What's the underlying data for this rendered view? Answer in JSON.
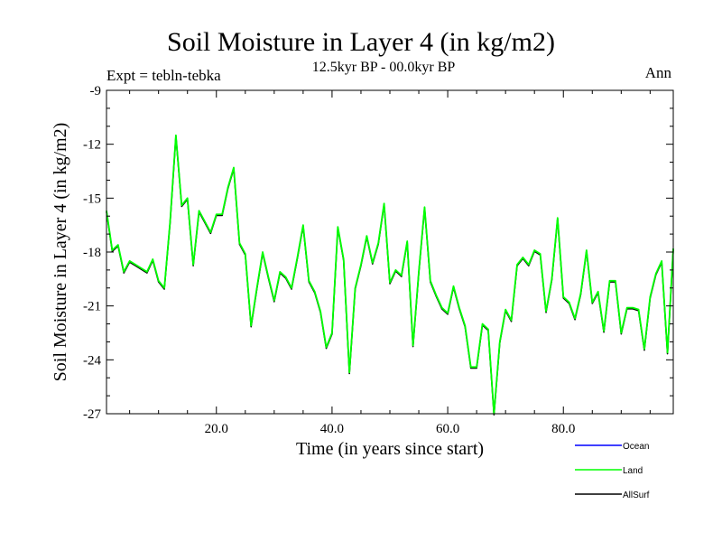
{
  "header": {
    "title": "Soil Moisture in Layer 4 (in kg/m2)",
    "subtitle": "12.5kyr BP - 00.0kyr BP",
    "experiment": "Expt = tebln-tebka",
    "period": "Ann"
  },
  "chart_data": {
    "type": "line",
    "title": "Soil Moisture in Layer 4 (in kg/m2)",
    "xlabel": "Time (in years since start)",
    "ylabel": "Soil Moisture in Layer 4 (in kg/m2)",
    "xlim": [
      1,
      99
    ],
    "ylim": [
      -27,
      -9
    ],
    "x_ticks": [
      20,
      40,
      60,
      80
    ],
    "x_tick_labels": [
      "20.0",
      "40.0",
      "60.0",
      "80.0"
    ],
    "y_ticks": [
      -9,
      -12,
      -15,
      -18,
      -21,
      -24,
      -27
    ],
    "y_tick_labels": [
      "-9",
      "-12",
      "-15",
      "-18",
      "-21",
      "-24",
      "-27"
    ],
    "x": [
      1,
      2,
      3,
      4,
      5,
      6,
      7,
      8,
      9,
      10,
      11,
      12,
      13,
      14,
      15,
      16,
      17,
      18,
      19,
      20,
      21,
      22,
      23,
      24,
      25,
      26,
      27,
      28,
      29,
      30,
      31,
      32,
      33,
      34,
      35,
      36,
      37,
      38,
      39,
      40,
      41,
      42,
      43,
      44,
      45,
      46,
      47,
      48,
      49,
      50,
      51,
      52,
      53,
      54,
      55,
      56,
      57,
      58,
      59,
      60,
      61,
      62,
      63,
      64,
      65,
      66,
      67,
      68,
      69,
      70,
      71,
      72,
      73,
      74,
      75,
      76,
      77,
      78,
      79,
      80,
      81,
      82,
      83,
      84,
      85,
      86,
      87,
      88,
      89,
      90,
      91,
      92,
      93,
      94,
      95,
      96,
      97,
      98,
      99
    ],
    "series": [
      {
        "name": "Ocean",
        "color": "#0000ff",
        "values": [
          -15.7,
          -17.9,
          -17.6,
          -19.1,
          -18.5,
          -18.7,
          -18.9,
          -19.1,
          -18.4,
          -19.6,
          -20.0,
          -16.3,
          -11.5,
          -15.4,
          -15.0,
          -18.7,
          -15.7,
          -16.3,
          -16.9,
          -15.9,
          -15.9,
          -14.4,
          -13.3,
          -17.5,
          -18.1,
          -22.1,
          -20.0,
          -18.0,
          -19.4,
          -20.7,
          -19.1,
          -19.4,
          -20.0,
          -18.3,
          -16.5,
          -19.6,
          -20.2,
          -21.3,
          -23.3,
          -22.5,
          -16.6,
          -18.4,
          -24.7,
          -20.0,
          -18.7,
          -17.1,
          -18.6,
          -17.5,
          -15.3,
          -19.7,
          -19.0,
          -19.3,
          -17.4,
          -23.2,
          -19.1,
          -15.5,
          -19.6,
          -20.4,
          -21.1,
          -21.4,
          -19.9,
          -21.1,
          -22.1,
          -24.4,
          -24.4,
          -22.0,
          -22.3,
          -27.0,
          -23.0,
          -21.2,
          -21.8,
          -18.7,
          -18.3,
          -18.7,
          -17.9,
          -18.1,
          -21.3,
          -19.5,
          -16.1,
          -20.5,
          -20.8,
          -21.7,
          -20.3,
          -17.9,
          -20.8,
          -20.2,
          -22.4,
          -19.6,
          -19.6,
          -22.5,
          -21.1,
          -21.1,
          -21.2,
          -23.4,
          -20.5,
          -19.2,
          -18.5,
          -23.6,
          -17.8
        ]
      },
      {
        "name": "Land",
        "color": "#00ff00",
        "values": [
          -15.7,
          -17.9,
          -17.6,
          -19.1,
          -18.5,
          -18.7,
          -18.9,
          -19.1,
          -18.4,
          -19.6,
          -20.0,
          -16.3,
          -11.5,
          -15.4,
          -15.0,
          -18.7,
          -15.7,
          -16.3,
          -16.9,
          -15.9,
          -15.9,
          -14.4,
          -13.3,
          -17.5,
          -18.1,
          -22.1,
          -20.0,
          -18.0,
          -19.4,
          -20.7,
          -19.1,
          -19.4,
          -20.0,
          -18.3,
          -16.5,
          -19.6,
          -20.2,
          -21.3,
          -23.3,
          -22.5,
          -16.6,
          -18.4,
          -24.7,
          -20.0,
          -18.7,
          -17.1,
          -18.6,
          -17.5,
          -15.3,
          -19.7,
          -19.0,
          -19.3,
          -17.4,
          -23.2,
          -19.1,
          -15.5,
          -19.6,
          -20.4,
          -21.1,
          -21.4,
          -19.9,
          -21.1,
          -22.1,
          -24.4,
          -24.4,
          -22.0,
          -22.3,
          -27.0,
          -23.0,
          -21.2,
          -21.8,
          -18.7,
          -18.3,
          -18.7,
          -17.9,
          -18.1,
          -21.3,
          -19.5,
          -16.1,
          -20.5,
          -20.8,
          -21.7,
          -20.3,
          -17.9,
          -20.8,
          -20.2,
          -22.4,
          -19.6,
          -19.6,
          -22.5,
          -21.1,
          -21.1,
          -21.2,
          -23.4,
          -20.5,
          -19.2,
          -18.5,
          -23.6,
          -17.8
        ]
      },
      {
        "name": "AllSurf",
        "color": "#000000",
        "values": [
          -15.7,
          -17.9,
          -17.6,
          -19.1,
          -18.5,
          -18.7,
          -18.9,
          -19.1,
          -18.4,
          -19.6,
          -20.0,
          -16.3,
          -11.5,
          -15.4,
          -15.0,
          -18.7,
          -15.7,
          -16.3,
          -16.9,
          -15.9,
          -15.9,
          -14.4,
          -13.3,
          -17.5,
          -18.1,
          -22.1,
          -20.0,
          -18.0,
          -19.4,
          -20.7,
          -19.1,
          -19.4,
          -20.0,
          -18.3,
          -16.5,
          -19.6,
          -20.2,
          -21.3,
          -23.3,
          -22.5,
          -16.6,
          -18.4,
          -24.7,
          -20.0,
          -18.7,
          -17.1,
          -18.6,
          -17.5,
          -15.3,
          -19.7,
          -19.0,
          -19.3,
          -17.4,
          -23.2,
          -19.1,
          -15.5,
          -19.6,
          -20.4,
          -21.1,
          -21.4,
          -19.9,
          -21.1,
          -22.1,
          -24.4,
          -24.4,
          -22.0,
          -22.3,
          -27.0,
          -23.0,
          -21.2,
          -21.8,
          -18.7,
          -18.3,
          -18.7,
          -17.9,
          -18.1,
          -21.3,
          -19.5,
          -16.1,
          -20.5,
          -20.8,
          -21.7,
          -20.3,
          -17.9,
          -20.8,
          -20.2,
          -22.4,
          -19.6,
          -19.6,
          -22.5,
          -21.1,
          -21.1,
          -21.2,
          -23.4,
          -20.5,
          -19.2,
          -18.5,
          -23.6,
          -17.8
        ]
      }
    ],
    "legend": [
      "Ocean",
      "Land",
      "AllSurf"
    ],
    "legend_position": "bottom-right"
  }
}
